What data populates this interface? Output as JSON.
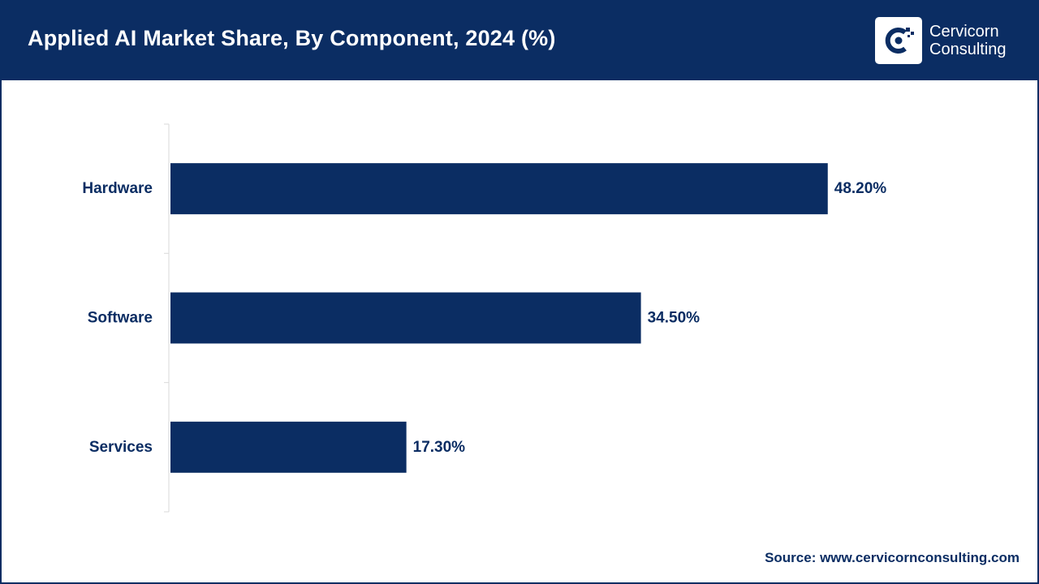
{
  "header": {
    "title": "Applied AI Market Share, By Component, 2024 (%)"
  },
  "logo": {
    "line1": "Cervicorn",
    "line2": "Consulting",
    "icon": "cervicorn-logo-icon"
  },
  "colors": {
    "brand": "#0b2d63",
    "bar": "#0b2d63",
    "background": "#ffffff",
    "axis": "#d9d9d9"
  },
  "chart_data": {
    "type": "bar",
    "orientation": "horizontal",
    "categories": [
      "Hardware",
      "Software",
      "Services"
    ],
    "values": [
      48.2,
      34.5,
      17.3
    ],
    "value_labels": [
      "48.20%",
      "34.50%",
      "17.30%"
    ],
    "xlim": [
      0,
      60
    ],
    "grid": false,
    "legend": "none"
  },
  "footer": {
    "source": "Source: www.cervicornconsulting.com"
  }
}
